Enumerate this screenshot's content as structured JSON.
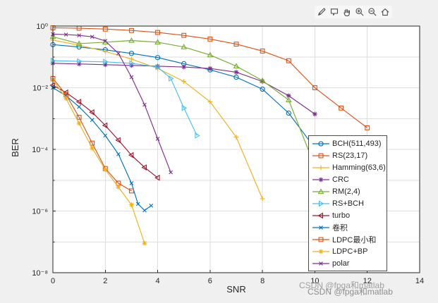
{
  "window": {
    "background": "#f0f0f0"
  },
  "toolbar": {
    "icons": [
      "brush",
      "data-tips",
      "pan",
      "zoom-in",
      "zoom-out",
      "restore-view"
    ]
  },
  "watermark": {
    "text": "CSDN @fpga和matlab",
    "color": "#9b9b9b"
  },
  "chart_data": {
    "type": "line",
    "title": "",
    "xlabel": "SNR",
    "ylabel": "BER",
    "xlim": [
      0,
      14
    ],
    "ylim_log10": [
      -8,
      0
    ],
    "x_ticks": [
      0,
      2,
      4,
      6,
      8,
      10,
      12,
      14
    ],
    "y_tick_labels": [
      "10⁰",
      "10⁻²",
      "10⁻⁴",
      "10⁻⁶",
      "10⁻⁸"
    ],
    "y_tick_exponents": [
      0,
      -2,
      -4,
      -6,
      -8
    ],
    "grid": true,
    "y_scale": "log",
    "legend_position": "inside-right",
    "series": [
      {
        "label": "BCH(511,493)",
        "color": "#0072BD",
        "marker": "o",
        "x": [
          0,
          1,
          2,
          3,
          4,
          5,
          6,
          7,
          8,
          9,
          10
        ],
        "y": [
          0.25,
          0.21,
          0.17,
          0.13,
          0.095,
          0.06,
          0.038,
          0.022,
          0.009,
          0.0015,
          0.00011
        ]
      },
      {
        "label": "RS(23,17)",
        "color": "#D95319",
        "marker": "s",
        "x": [
          0,
          1,
          2,
          3,
          4,
          5,
          6,
          7,
          8,
          9,
          10,
          11,
          12
        ],
        "y": [
          0.88,
          0.85,
          0.8,
          0.72,
          0.62,
          0.5,
          0.38,
          0.26,
          0.155,
          0.075,
          0.01,
          0.0022,
          0.0005
        ]
      },
      {
        "label": "Hamming(63,6)",
        "color": "#EDB120",
        "marker": "+",
        "x": [
          0,
          1,
          2,
          3,
          4,
          5,
          6,
          7,
          8
        ],
        "y": [
          0.35,
          0.24,
          0.15,
          0.085,
          0.042,
          0.016,
          0.0035,
          0.00025,
          2.5e-06
        ]
      },
      {
        "label": "CRC",
        "color": "#7E2F8E",
        "marker": "*",
        "x": [
          0,
          1,
          2,
          3,
          4,
          5,
          6,
          7,
          8,
          9,
          10
        ],
        "y": [
          0.062,
          0.059,
          0.056,
          0.053,
          0.05,
          0.047,
          0.042,
          0.032,
          0.016,
          0.0055,
          0.0014
        ]
      },
      {
        "label": "RM(2,4)",
        "color": "#77AC30",
        "marker": "^",
        "x": [
          0,
          1,
          2,
          3,
          4,
          5,
          6,
          7,
          8,
          9,
          10
        ],
        "y": [
          0.45,
          0.27,
          0.3,
          0.34,
          0.3,
          0.21,
          0.115,
          0.05,
          0.017,
          0.004,
          2.8e-05
        ]
      },
      {
        "label": "RS+BCH",
        "color": "#4DBEEE",
        "marker": ">",
        "x": [
          0,
          1,
          2,
          3,
          4,
          4.5,
          5,
          5.5
        ],
        "y": [
          0.075,
          0.072,
          0.069,
          0.062,
          0.047,
          0.02,
          0.0022,
          0.00028
        ]
      },
      {
        "label": "turbo",
        "color": "#A2142F",
        "marker": "<",
        "x": [
          0,
          0.5,
          1,
          1.5,
          2,
          2.5,
          3,
          3.5,
          4
        ],
        "y": [
          0.012,
          0.007,
          0.0035,
          0.0016,
          0.0006,
          0.0002,
          6.5e-05,
          2.6e-05,
          1.2e-05
        ]
      },
      {
        "label": "卷积",
        "color": "#0072BD",
        "marker": "x",
        "x": [
          0,
          0.5,
          1,
          1.5,
          2,
          2.5,
          3,
          3.25,
          3.5,
          3.75
        ],
        "y": [
          0.01,
          0.0055,
          0.0024,
          0.0009,
          0.00028,
          7e-05,
          8e-06,
          1.7e-06,
          1.05e-06,
          1.5e-06
        ]
      },
      {
        "label": "LDPC最小和",
        "color": "#D95319",
        "marker": "s",
        "x": [
          0,
          0.5,
          1,
          1.5,
          2,
          2.5,
          3
        ],
        "y": [
          0.02,
          0.006,
          0.0011,
          0.00016,
          2.4e-05,
          8e-06,
          4.5e-06
        ]
      },
      {
        "label": "LDPC+BP",
        "color": "#EDB120",
        "marker": "*",
        "x": [
          0,
          0.5,
          1,
          1.5,
          2,
          2.5,
          3,
          3.5
        ],
        "y": [
          0.018,
          0.0045,
          0.0007,
          0.00011,
          2.2e-05,
          6e-06,
          1.6e-06,
          9e-08
        ]
      },
      {
        "label": "polar",
        "color": "#7E2F8E",
        "marker": "x",
        "x": [
          0,
          0.5,
          1,
          1.5,
          2,
          2.5,
          3,
          3.5,
          4,
          4.5
        ],
        "y": [
          0.55,
          0.53,
          0.5,
          0.45,
          0.33,
          0.13,
          0.022,
          0.0028,
          0.00022,
          1.8e-05
        ]
      }
    ]
  }
}
